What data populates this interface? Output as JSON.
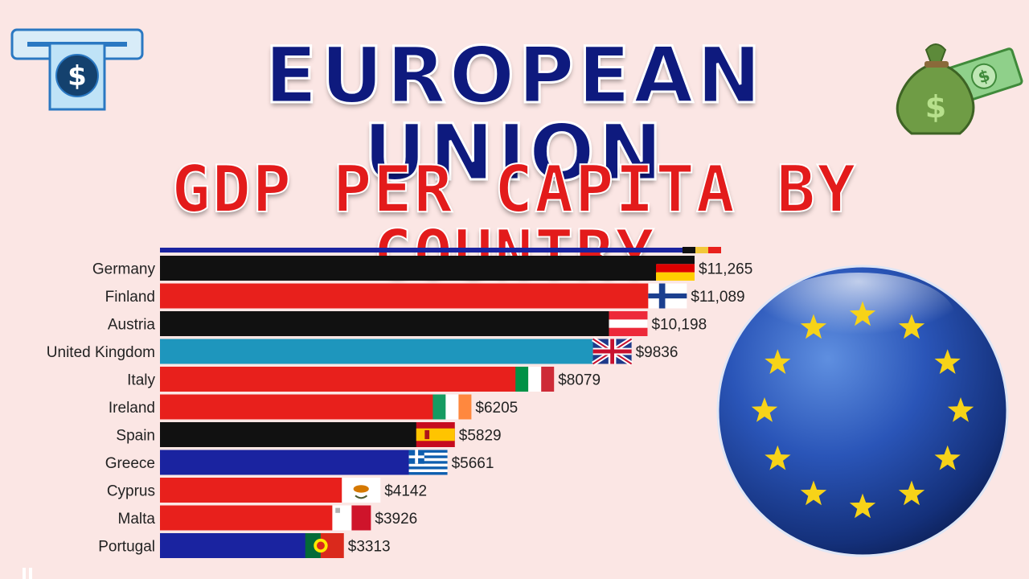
{
  "header": {
    "title": "EUROPEAN UNION",
    "subtitle": "GDP PER CAPITA BY COUNTRY"
  },
  "icons": {
    "left": "atm-cash-icon",
    "right": "money-bag-icon",
    "globe": "eu-flag-globe-icon"
  },
  "colors": {
    "title": "#0e1a7e",
    "subtitle": "#e31b1b",
    "background": "#fbe6e4",
    "eu_blue": "#1f3fa6",
    "eu_star": "#f7d318"
  },
  "chart_data": {
    "type": "bar",
    "orientation": "horizontal",
    "categories": [
      "Germany",
      "Finland",
      "Austria",
      "United Kingdom",
      "Italy",
      "Ireland",
      "Spain",
      "Greece",
      "Cyprus",
      "Malta",
      "Portugal"
    ],
    "values": [
      11265,
      11089,
      10198,
      9836,
      8079,
      6205,
      5829,
      5661,
      4142,
      3926,
      3313
    ],
    "value_labels": [
      "$11,265",
      "$11,089",
      "$10,198",
      "$9836",
      "$8079",
      "$6205",
      "$5829",
      "$5661",
      "$4142",
      "$3926",
      "$3313"
    ],
    "bar_colors": [
      "#111111",
      "#e8201c",
      "#111111",
      "#1e96bd",
      "#e8201c",
      "#e8201c",
      "#111111",
      "#1a23a0",
      "#e8201c",
      "#e8201c",
      "#1a23a0"
    ],
    "flags": [
      "germany-flag-icon",
      "finland-flag-icon",
      "austria-flag-icon",
      "united-kingdom-flag-icon",
      "italy-flag-icon",
      "ireland-flag-icon",
      "spain-flag-icon",
      "greece-flag-icon",
      "cyprus-flag-icon",
      "malta-flag-icon",
      "portugal-flag-icon"
    ],
    "xlim": [
      0,
      11265
    ],
    "grid": false
  }
}
